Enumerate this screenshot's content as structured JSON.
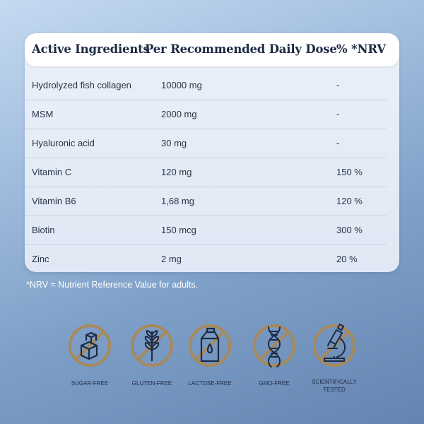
{
  "table": {
    "headers": [
      "Active Ingredients",
      "Per Recommended Daily Dose",
      "% *NRV"
    ],
    "rows": [
      {
        "ingredient": "Hydrolyzed fish collagen",
        "dose": "10000 mg",
        "nrv": "-"
      },
      {
        "ingredient": "MSM",
        "dose": "2000 mg",
        "nrv": "-"
      },
      {
        "ingredient": "Hyaluronic acid",
        "dose": "30 mg",
        "nrv": "-"
      },
      {
        "ingredient": "Vitamin C",
        "dose": "120 mg",
        "nrv": "150 %"
      },
      {
        "ingredient": "Vitamin B6",
        "dose": "1,68 mg",
        "nrv": "120 %"
      },
      {
        "ingredient": "Biotin",
        "dose": "150 mcg",
        "nrv": "300 %"
      },
      {
        "ingredient": "Zinc",
        "dose": "2 mg",
        "nrv": "20 %"
      }
    ]
  },
  "footnote": "*NRV = Nutrient Reference Value for adults.",
  "badges": [
    {
      "label": "SUGAR-FREE",
      "icon": "sugar-cubes-icon"
    },
    {
      "label": "GLUTEN-FREE",
      "icon": "wheat-icon"
    },
    {
      "label": "LACTOSE-FREE",
      "icon": "milk-carton-icon"
    },
    {
      "label": "GMO-FREE",
      "icon": "dna-icon"
    },
    {
      "label": "SCIENTIFICALLY TESTED",
      "icon": "microscope-icon"
    }
  ],
  "colors": {
    "accent_gold": "#a8895a",
    "navy": "#1d2a44",
    "card": "#e3ebf6"
  }
}
